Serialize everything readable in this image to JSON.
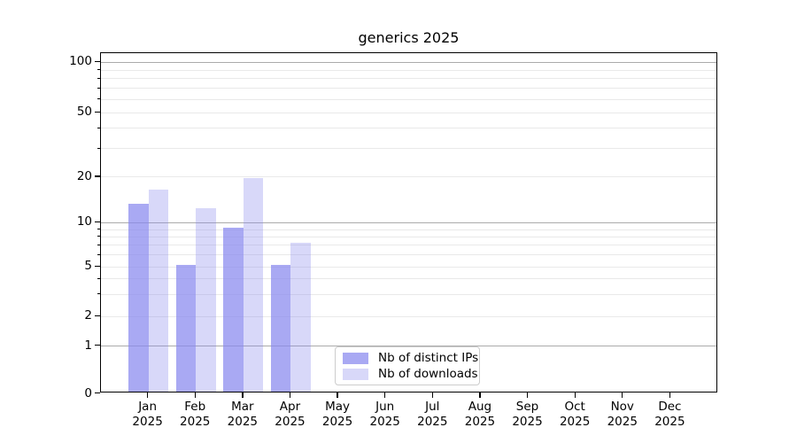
{
  "title": "generics 2025",
  "chart_data": {
    "type": "bar",
    "title": "generics 2025",
    "xlabel": "",
    "ylabel": "",
    "categories": [
      "Jan 2025",
      "Feb 2025",
      "Mar 2025",
      "Apr 2025",
      "May 2025",
      "Jun 2025",
      "Jul 2025",
      "Aug 2025",
      "Sep 2025",
      "Oct 2025",
      "Nov 2025",
      "Dec 2025"
    ],
    "series": [
      {
        "name": "Nb of distinct IPs",
        "color": "rgba(137,137,238,0.73)",
        "values": [
          13,
          5,
          9,
          5,
          0,
          0,
          0,
          0,
          0,
          0,
          0,
          0
        ]
      },
      {
        "name": "Nb of downloads",
        "color": "rgba(137,137,238,0.33)",
        "values": [
          16,
          12,
          19,
          7,
          0,
          0,
          0,
          0,
          0,
          0,
          0,
          0
        ]
      }
    ],
    "y_ticks": [
      0,
      1,
      2,
      5,
      10,
      20,
      50,
      100
    ],
    "ylim": [
      0,
      114
    ],
    "yscale": "symlog",
    "grid": true,
    "legend_position": "lower center",
    "colors": {
      "bar_base": "#8989ee",
      "grid_major": "#ababab",
      "grid_minor": "#e9e9e9",
      "axis": "#000000",
      "legend_border": "#cccccc",
      "background": "#ffffff"
    }
  }
}
